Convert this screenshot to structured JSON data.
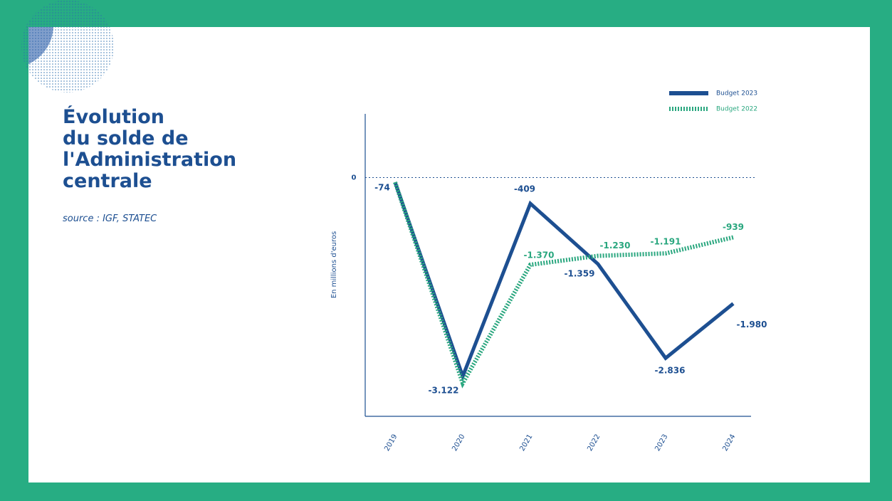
{
  "chart_data": {
    "type": "line",
    "title_lines": [
      "Évolution",
      "du solde de",
      "l'Administration",
      "centrale"
    ],
    "subtitle": "source : IGF, STATEC",
    "y_label": "En millions d'euros",
    "categories": [
      "2019",
      "2020",
      "2021",
      "2022",
      "2023",
      "2024"
    ],
    "series": [
      {
        "name": "Budget 2023",
        "color": "#1d4f91",
        "style": "solid",
        "values": [
          -74,
          -3122,
          -409,
          -1359,
          -2836,
          -1980
        ],
        "value_labels": [
          "-74",
          "-3.122",
          "-409",
          "-1.359",
          "-2.836",
          "-1.980"
        ]
      },
      {
        "name": "Budget 2022",
        "color": "#2aa77f",
        "style": "dashed",
        "values": [
          -74,
          -3230,
          -1370,
          -1230,
          -1191,
          -939
        ],
        "value_labels": [
          null,
          null,
          "-1.370",
          "-1.230",
          "-1.191",
          "-939"
        ]
      }
    ],
    "ylim": [
      -3750,
      1000
    ],
    "yticks": [
      0
    ],
    "legend": "top-right"
  }
}
